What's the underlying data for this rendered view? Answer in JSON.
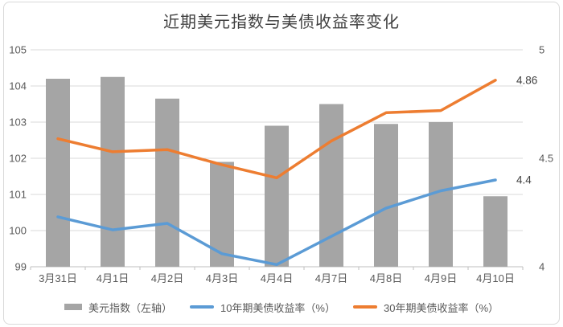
{
  "title": "近期美元指数与美债收益率变化",
  "colors": {
    "bar": "#A5A5A5",
    "line_10y": "#5B9BD5",
    "line_30y": "#ED7D31",
    "grid": "#D9D9D9",
    "axis_line": "#BFBFBF",
    "axis_text": "#595959",
    "title_text": "#404040",
    "data_label_text": "#404040",
    "card_border": "#D9D9D9"
  },
  "chart_data": {
    "type": "bar",
    "subtype": "combo-bar-line-dual-axis",
    "title": "近期美元指数与美债收益率变化",
    "categories": [
      "3月31日",
      "4月1日",
      "4月2日",
      "4月3日",
      "4月4日",
      "4月7日",
      "4月8日",
      "4月9日",
      "4月10日"
    ],
    "series": [
      {
        "name": "美元指数（左轴）",
        "type": "bar",
        "axis": "left",
        "values": [
          104.2,
          104.25,
          103.65,
          101.9,
          102.9,
          103.5,
          102.95,
          103.0,
          100.95
        ]
      },
      {
        "name": "10年期美债收益率（%）",
        "type": "line",
        "axis": "right",
        "values": [
          4.23,
          4.17,
          4.2,
          4.06,
          4.01,
          4.14,
          4.27,
          4.35,
          4.4
        ],
        "end_label": "4.4"
      },
      {
        "name": "30年期美债收益率（%）",
        "type": "line",
        "axis": "right",
        "values": [
          4.59,
          4.53,
          4.54,
          4.47,
          4.41,
          4.58,
          4.71,
          4.72,
          4.86
        ],
        "end_label": "4.86"
      }
    ],
    "left_axis": {
      "min": 99,
      "max": 105,
      "tick_labels": [
        "99",
        "100",
        "101",
        "102",
        "103",
        "104",
        "105"
      ],
      "tick_values": [
        99,
        100,
        101,
        102,
        103,
        104,
        105
      ]
    },
    "right_axis": {
      "min": 4,
      "max": 5,
      "tick_labels": [
        "4",
        "4.5",
        "5"
      ],
      "tick_values": [
        4,
        4.5,
        5
      ]
    },
    "grid": true,
    "legend_position": "bottom"
  },
  "legend": {
    "items": [
      {
        "label": "美元指数（左轴）",
        "marker": "bar"
      },
      {
        "label": "10年期美债收益率（%）",
        "marker": "line-blue"
      },
      {
        "label": "30年期美债收益率（%）",
        "marker": "line-orange"
      }
    ]
  }
}
